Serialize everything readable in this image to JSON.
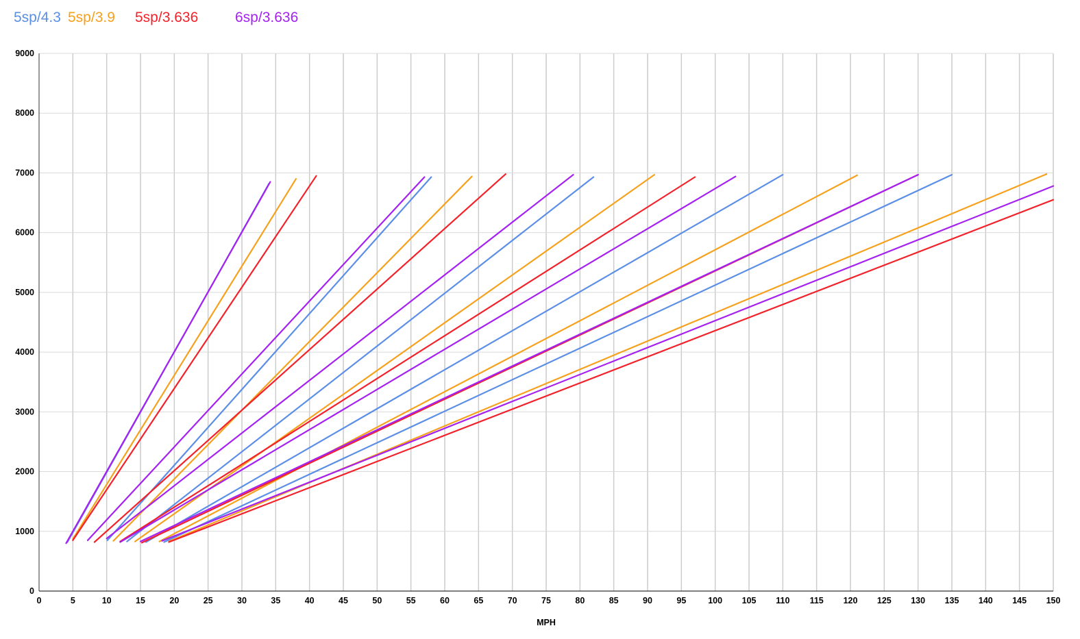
{
  "chart_data": {
    "type": "line",
    "title": "",
    "xlabel": "MPH",
    "ylabel": "",
    "xlim": [
      0,
      150
    ],
    "ylim": [
      0,
      9000
    ],
    "x_ticks": [
      0,
      5,
      10,
      15,
      20,
      25,
      30,
      35,
      40,
      45,
      50,
      55,
      60,
      65,
      70,
      75,
      80,
      85,
      90,
      95,
      100,
      105,
      110,
      115,
      120,
      125,
      130,
      135,
      140,
      145,
      150
    ],
    "y_ticks": [
      0,
      1000,
      2000,
      3000,
      4000,
      5000,
      6000,
      7000,
      8000,
      9000
    ],
    "grid": true,
    "legend_position": "top-left",
    "series": [
      {
        "name": "5sp/4.3",
        "color": "#5b8ee6",
        "lines": [
          [
            [
              4.2,
              820
            ],
            [
              34.0,
              6820
            ]
          ],
          [
            [
              10.1,
              850
            ],
            [
              58.0,
              6930
            ]
          ],
          [
            [
              13.0,
              830
            ],
            [
              82.0,
              6930
            ]
          ],
          [
            [
              15.8,
              820
            ],
            [
              110.0,
              6970
            ]
          ],
          [
            [
              18.5,
              820
            ],
            [
              135.0,
              6970
            ]
          ]
        ]
      },
      {
        "name": "5sp/3.9",
        "color": "#f5a11c",
        "lines": [
          [
            [
              5.0,
              870
            ],
            [
              38.0,
              6900
            ]
          ],
          [
            [
              11.0,
              840
            ],
            [
              64.0,
              6940
            ]
          ],
          [
            [
              14.2,
              830
            ],
            [
              91.0,
              6970
            ]
          ],
          [
            [
              17.8,
              830
            ],
            [
              121.0,
              6960
            ]
          ],
          [
            [
              19.2,
              830
            ],
            [
              149.0,
              6980
            ]
          ]
        ]
      },
      {
        "name": "5sp/3.636",
        "color": "#f2222b",
        "lines": [
          [
            [
              5.0,
              850
            ],
            [
              41.0,
              6950
            ]
          ],
          [
            [
              8.2,
              820
            ],
            [
              69.0,
              6980
            ]
          ],
          [
            [
              12.0,
              830
            ],
            [
              97.0,
              6930
            ]
          ],
          [
            [
              15.2,
              810
            ],
            [
              130.0,
              6970
            ]
          ],
          [
            [
              19.2,
              820
            ],
            [
              150.0,
              6550
            ]
          ]
        ]
      },
      {
        "name": "6sp/3.636",
        "color": "#a521f0",
        "lines": [
          [
            [
              4.0,
              800
            ],
            [
              34.2,
              6850
            ]
          ],
          [
            [
              7.2,
              850
            ],
            [
              57.0,
              6930
            ]
          ],
          [
            [
              10.0,
              880
            ],
            [
              79.0,
              6970
            ]
          ],
          [
            [
              12.0,
              820
            ],
            [
              103.0,
              6940
            ]
          ],
          [
            [
              15.0,
              830
            ],
            [
              130.0,
              6970
            ]
          ],
          [
            [
              18.2,
              840
            ],
            [
              150.0,
              6780
            ]
          ]
        ]
      }
    ]
  }
}
